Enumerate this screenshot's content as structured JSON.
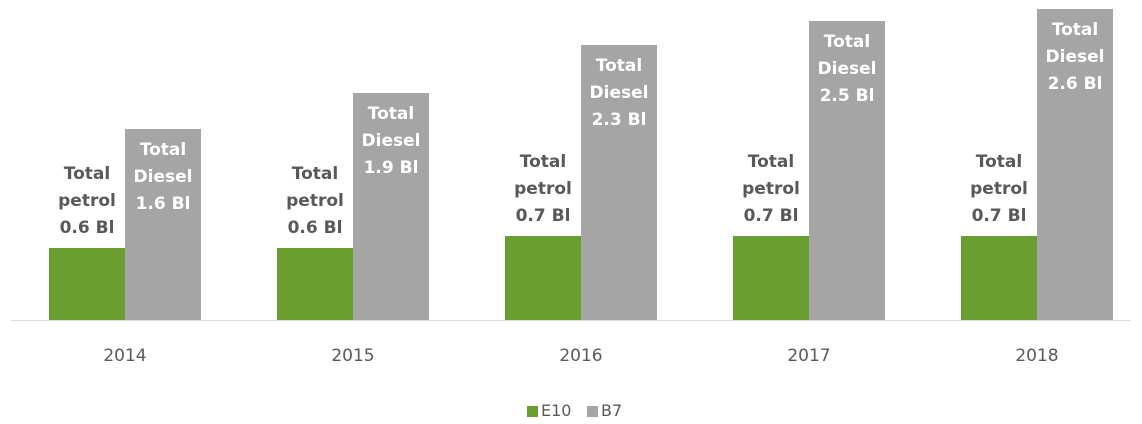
{
  "chart_data": {
    "type": "bar",
    "categories": [
      "2014",
      "2015",
      "2016",
      "2017",
      "2018"
    ],
    "series": [
      {
        "name": "E10",
        "color": "#6b9e30",
        "values": [
          0.6,
          0.6,
          0.7,
          0.7,
          0.7
        ],
        "value_labels": [
          "Total petrol 0.6 Bl",
          "Total petrol 0.6 Bl",
          "Total petrol 0.7 Bl",
          "Total petrol 0.7 Bl",
          "Total petrol 0.7 Bl"
        ]
      },
      {
        "name": "B7",
        "color": "#a5a5a5",
        "values": [
          1.6,
          1.9,
          2.3,
          2.5,
          2.6
        ],
        "value_labels": [
          "Total Diesel 1.6 Bl",
          "Total Diesel 1.9 Bl",
          "Total Diesel 2.3 Bl",
          "Total Diesel 2.5 Bl",
          "Total Diesel 2.6 Bl"
        ]
      }
    ],
    "ylim": [
      0,
      2.6
    ],
    "legend": "bottom"
  }
}
